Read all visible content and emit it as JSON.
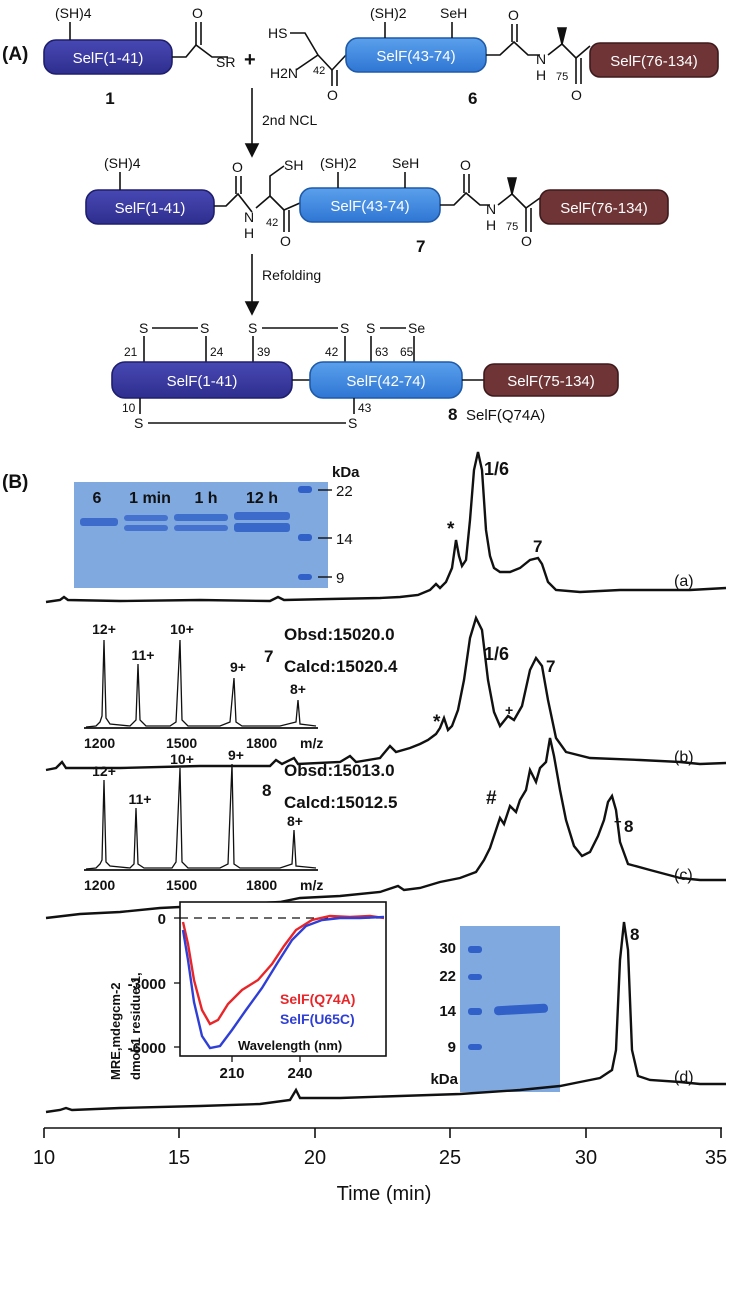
{
  "panel_a": {
    "label": "(A)",
    "plus": "+",
    "seg_1_41": "SelF(1-41)",
    "seg_43_74": "SelF(43-74)",
    "seg_76_134": "SelF(76-134)",
    "seg_42_74": "SelF(42-74)",
    "seg_75_134": "SelF(75-134)",
    "sh4": "(SH)4",
    "sh2": "(SH)2",
    "seh": "SeH",
    "hs": "HS",
    "sh": "SH",
    "sr": "SR",
    "h2n": "H2N",
    "nh": "N",
    "h": "H",
    "o": "O",
    "res42": "42",
    "res75": "75",
    "cmpd1": "1",
    "cmpd6": "6",
    "cmpd7": "7",
    "cmpd8": "8",
    "cmpd8_name": "SelF(Q74A)",
    "step1": "2nd NCL",
    "step2": "Refolding",
    "s": "S",
    "se": "Se",
    "pos21": "21",
    "pos24": "24",
    "pos39": "39",
    "pos42": "42",
    "pos63": "63",
    "pos65": "65",
    "pos10": "10",
    "pos43": "43"
  },
  "panel_b": {
    "label": "(B)",
    "gel1": {
      "lanes": [
        "6",
        "1 min",
        "1 h",
        "12 h"
      ],
      "unit": "kDa",
      "markers": [
        "22",
        "14",
        "9"
      ]
    },
    "trace_labels": [
      "(a)",
      "(b)",
      "(c)",
      "(d)"
    ],
    "peaks_a": {
      "p16": "1/6",
      "star": "*",
      "p7": "7"
    },
    "peaks_b": {
      "p16": "1/6",
      "star": "*",
      "plus": "+",
      "p7": "7"
    },
    "peaks_c": {
      "hash": "#",
      "plus": "+",
      "p8": "8"
    },
    "peaks_d": {
      "p8": "8"
    },
    "ms7": {
      "compound": "7",
      "obsd": "Obsd:15020.0",
      "calcd": "Calcd:15020.4",
      "charges": [
        "12+",
        "11+",
        "10+",
        "9+",
        "8+"
      ],
      "ticks": [
        "1200",
        "1500",
        "1800"
      ],
      "unit": "m/z"
    },
    "ms8": {
      "compound": "8",
      "obsd": "Obsd:15013.0",
      "calcd": "Calcd:15012.5",
      "charges": [
        "12+",
        "11+",
        "10+",
        "9+",
        "8+"
      ],
      "ticks": [
        "1200",
        "1500",
        "1800"
      ],
      "unit": "m/z"
    },
    "cd": {
      "ylabel1": "MRE,mdegcm-2",
      "ylabel2": "dmol-1 residue-1,",
      "yticks": [
        "0",
        "-3000",
        "-6000"
      ],
      "xticks": [
        "210",
        "240"
      ],
      "xlabel": "Wavelength (nm)",
      "legend": [
        {
          "name": "SelF(Q74A)",
          "color": "#e8262a"
        },
        {
          "name": "SelF(U65C)",
          "color": "#2f3fd6"
        }
      ]
    },
    "gel2": {
      "markers": [
        "30",
        "22",
        "14",
        "9"
      ],
      "unit": "kDa"
    },
    "xaxis": {
      "ticks": [
        "10",
        "15",
        "20",
        "25",
        "30",
        "35"
      ],
      "label": "Time (min)"
    }
  },
  "colors": {
    "dark_blue": "#3a3aa0",
    "light_blue": "#3f8be0",
    "maroon": "#6e3436",
    "gel": "#7fa9df",
    "band": "#3060c8"
  }
}
